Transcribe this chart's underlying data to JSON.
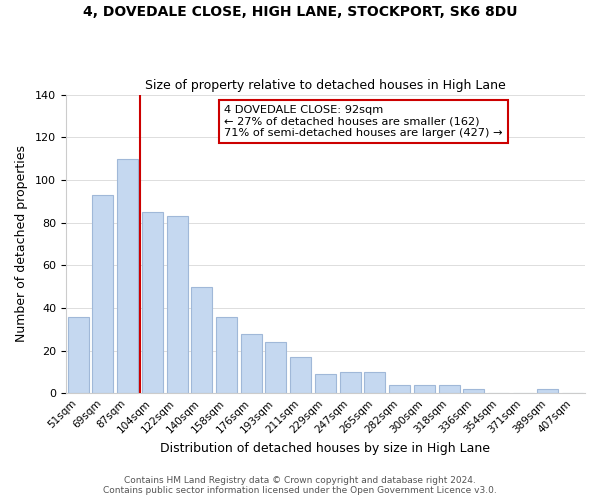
{
  "title": "4, DOVEDALE CLOSE, HIGH LANE, STOCKPORT, SK6 8DU",
  "subtitle": "Size of property relative to detached houses in High Lane",
  "xlabel": "Distribution of detached houses by size in High Lane",
  "ylabel": "Number of detached properties",
  "bar_labels": [
    "51sqm",
    "69sqm",
    "87sqm",
    "104sqm",
    "122sqm",
    "140sqm",
    "158sqm",
    "176sqm",
    "193sqm",
    "211sqm",
    "229sqm",
    "247sqm",
    "265sqm",
    "282sqm",
    "300sqm",
    "318sqm",
    "336sqm",
    "354sqm",
    "371sqm",
    "389sqm",
    "407sqm"
  ],
  "bar_values": [
    36,
    93,
    110,
    85,
    83,
    50,
    36,
    28,
    24,
    17,
    9,
    10,
    10,
    4,
    4,
    4,
    2,
    0,
    0,
    2,
    0
  ],
  "bar_color": "#c5d8f0",
  "bar_edge_color": "#a0b8d8",
  "vline_index": 2,
  "vline_color": "#cc0000",
  "annotation_title": "4 DOVEDALE CLOSE: 92sqm",
  "annotation_line1": "← 27% of detached houses are smaller (162)",
  "annotation_line2": "71% of semi-detached houses are larger (427) →",
  "annotation_box_color": "#ffffff",
  "annotation_box_edge": "#cc0000",
  "ylim": [
    0,
    140
  ],
  "yticks": [
    0,
    20,
    40,
    60,
    80,
    100,
    120,
    140
  ],
  "footer1": "Contains HM Land Registry data © Crown copyright and database right 2024.",
  "footer2": "Contains public sector information licensed under the Open Government Licence v3.0."
}
